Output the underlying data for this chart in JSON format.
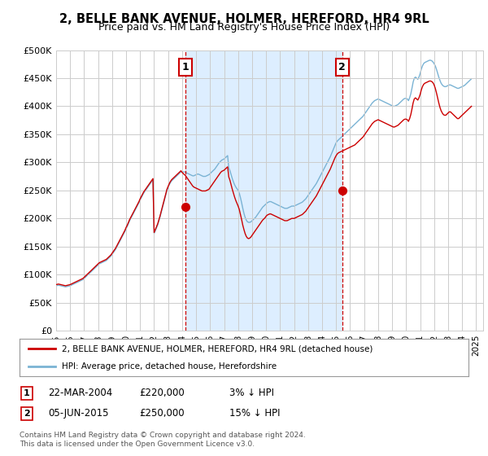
{
  "title": "2, BELLE BANK AVENUE, HOLMER, HEREFORD, HR4 9RL",
  "subtitle": "Price paid vs. HM Land Registry's House Price Index (HPI)",
  "ytick_values": [
    0,
    50000,
    100000,
    150000,
    200000,
    250000,
    300000,
    350000,
    400000,
    450000,
    500000
  ],
  "ylim": [
    0,
    500000
  ],
  "xlim_start": 1995.0,
  "xlim_end": 2025.5,
  "sale1_date": 2004.23,
  "sale1_price": 220000,
  "sale1_label": "22-MAR-2004",
  "sale2_date": 2015.44,
  "sale2_price": 250000,
  "sale2_label": "05-JUN-2015",
  "legend_line1": "2, BELLE BANK AVENUE, HOLMER, HEREFORD, HR4 9RL (detached house)",
  "legend_line2": "HPI: Average price, detached house, Herefordshire",
  "footer1": "Contains HM Land Registry data © Crown copyright and database right 2024.",
  "footer2": "This data is licensed under the Open Government Licence v3.0.",
  "bg_color": "#ffffff",
  "plot_bg": "#ffffff",
  "shade_color": "#ddeeff",
  "grid_color": "#cccccc",
  "red_color": "#cc0000",
  "blue_color": "#7ab3d4",
  "hpi_data_x": [
    1995.0,
    1995.083,
    1995.167,
    1995.25,
    1995.333,
    1995.417,
    1995.5,
    1995.583,
    1995.667,
    1995.75,
    1995.833,
    1995.917,
    1996.0,
    1996.083,
    1996.167,
    1996.25,
    1996.333,
    1996.417,
    1996.5,
    1996.583,
    1996.667,
    1996.75,
    1996.833,
    1996.917,
    1997.0,
    1997.083,
    1997.167,
    1997.25,
    1997.333,
    1997.417,
    1997.5,
    1997.583,
    1997.667,
    1997.75,
    1997.833,
    1997.917,
    1998.0,
    1998.083,
    1998.167,
    1998.25,
    1998.333,
    1998.417,
    1998.5,
    1998.583,
    1998.667,
    1998.75,
    1998.833,
    1998.917,
    1999.0,
    1999.083,
    1999.167,
    1999.25,
    1999.333,
    1999.417,
    1999.5,
    1999.583,
    1999.667,
    1999.75,
    1999.833,
    1999.917,
    2000.0,
    2000.083,
    2000.167,
    2000.25,
    2000.333,
    2000.417,
    2000.5,
    2000.583,
    2000.667,
    2000.75,
    2000.833,
    2000.917,
    2001.0,
    2001.083,
    2001.167,
    2001.25,
    2001.333,
    2001.417,
    2001.5,
    2001.583,
    2001.667,
    2001.75,
    2001.833,
    2001.917,
    2002.0,
    2002.083,
    2002.167,
    2002.25,
    2002.333,
    2002.417,
    2002.5,
    2002.583,
    2002.667,
    2002.75,
    2002.833,
    2002.917,
    2003.0,
    2003.083,
    2003.167,
    2003.25,
    2003.333,
    2003.417,
    2003.5,
    2003.583,
    2003.667,
    2003.75,
    2003.833,
    2003.917,
    2004.0,
    2004.083,
    2004.167,
    2004.25,
    2004.333,
    2004.417,
    2004.5,
    2004.583,
    2004.667,
    2004.75,
    2004.833,
    2004.917,
    2005.0,
    2005.083,
    2005.167,
    2005.25,
    2005.333,
    2005.417,
    2005.5,
    2005.583,
    2005.667,
    2005.75,
    2005.833,
    2005.917,
    2006.0,
    2006.083,
    2006.167,
    2006.25,
    2006.333,
    2006.417,
    2006.5,
    2006.583,
    2006.667,
    2006.75,
    2006.833,
    2006.917,
    2007.0,
    2007.083,
    2007.167,
    2007.25,
    2007.333,
    2007.417,
    2007.5,
    2007.583,
    2007.667,
    2007.75,
    2007.833,
    2007.917,
    2008.0,
    2008.083,
    2008.167,
    2008.25,
    2008.333,
    2008.417,
    2008.5,
    2008.583,
    2008.667,
    2008.75,
    2008.833,
    2008.917,
    2009.0,
    2009.083,
    2009.167,
    2009.25,
    2009.333,
    2009.417,
    2009.5,
    2009.583,
    2009.667,
    2009.75,
    2009.833,
    2009.917,
    2010.0,
    2010.083,
    2010.167,
    2010.25,
    2010.333,
    2010.417,
    2010.5,
    2010.583,
    2010.667,
    2010.75,
    2010.833,
    2010.917,
    2011.0,
    2011.083,
    2011.167,
    2011.25,
    2011.333,
    2011.417,
    2011.5,
    2011.583,
    2011.667,
    2011.75,
    2011.833,
    2011.917,
    2012.0,
    2012.083,
    2012.167,
    2012.25,
    2012.333,
    2012.417,
    2012.5,
    2012.583,
    2012.667,
    2012.75,
    2012.833,
    2012.917,
    2013.0,
    2013.083,
    2013.167,
    2013.25,
    2013.333,
    2013.417,
    2013.5,
    2013.583,
    2013.667,
    2013.75,
    2013.833,
    2013.917,
    2014.0,
    2014.083,
    2014.167,
    2014.25,
    2014.333,
    2014.417,
    2014.5,
    2014.583,
    2014.667,
    2014.75,
    2014.833,
    2014.917,
    2015.0,
    2015.083,
    2015.167,
    2015.25,
    2015.333,
    2015.417,
    2015.5,
    2015.583,
    2015.667,
    2015.75,
    2015.833,
    2015.917,
    2016.0,
    2016.083,
    2016.167,
    2016.25,
    2016.333,
    2016.417,
    2016.5,
    2016.583,
    2016.667,
    2016.75,
    2016.833,
    2016.917,
    2017.0,
    2017.083,
    2017.167,
    2017.25,
    2017.333,
    2017.417,
    2017.5,
    2017.583,
    2017.667,
    2017.75,
    2017.833,
    2017.917,
    2018.0,
    2018.083,
    2018.167,
    2018.25,
    2018.333,
    2018.417,
    2018.5,
    2018.583,
    2018.667,
    2018.75,
    2018.833,
    2018.917,
    2019.0,
    2019.083,
    2019.167,
    2019.25,
    2019.333,
    2019.417,
    2019.5,
    2019.583,
    2019.667,
    2019.75,
    2019.833,
    2019.917,
    2020.0,
    2020.083,
    2020.167,
    2020.25,
    2020.333,
    2020.417,
    2020.5,
    2020.583,
    2020.667,
    2020.75,
    2020.833,
    2020.917,
    2021.0,
    2021.083,
    2021.167,
    2021.25,
    2021.333,
    2021.417,
    2021.5,
    2021.583,
    2021.667,
    2021.75,
    2021.833,
    2021.917,
    2022.0,
    2022.083,
    2022.167,
    2022.25,
    2022.333,
    2022.417,
    2022.5,
    2022.583,
    2022.667,
    2022.75,
    2022.833,
    2022.917,
    2023.0,
    2023.083,
    2023.167,
    2023.25,
    2023.333,
    2023.417,
    2023.5,
    2023.583,
    2023.667,
    2023.75,
    2023.833,
    2023.917,
    2024.0,
    2024.083,
    2024.167,
    2024.25,
    2024.333,
    2024.417,
    2024.5,
    2024.583,
    2024.667
  ],
  "hpi_data_y": [
    80000,
    80500,
    81000,
    80500,
    80000,
    79500,
    79000,
    78500,
    78000,
    78500,
    79000,
    79500,
    80000,
    81000,
    82000,
    83000,
    84000,
    85000,
    86000,
    87000,
    88000,
    89000,
    90000,
    91000,
    93000,
    95000,
    97000,
    99000,
    101000,
    103000,
    105000,
    107000,
    109000,
    111000,
    113000,
    115000,
    117000,
    119000,
    120000,
    121000,
    122000,
    123000,
    124000,
    125000,
    127000,
    129000,
    131000,
    133000,
    136000,
    139000,
    142000,
    145000,
    149000,
    153000,
    157000,
    161000,
    165000,
    169000,
    173000,
    177000,
    182000,
    186000,
    191000,
    196000,
    200000,
    204000,
    208000,
    212000,
    216000,
    220000,
    224000,
    228000,
    233000,
    237000,
    241000,
    245000,
    248000,
    251000,
    254000,
    257000,
    260000,
    263000,
    266000,
    269000,
    173000,
    178000,
    183000,
    188000,
    195000,
    202000,
    210000,
    218000,
    226000,
    234000,
    242000,
    250000,
    255000,
    260000,
    264000,
    267000,
    269000,
    271000,
    273000,
    275000,
    277000,
    279000,
    281000,
    283000,
    283000,
    283000,
    283000,
    282000,
    281000,
    280000,
    279000,
    278000,
    277000,
    276000,
    276000,
    277000,
    278000,
    279000,
    279000,
    278000,
    277000,
    276000,
    275000,
    275000,
    275000,
    276000,
    277000,
    278000,
    280000,
    282000,
    284000,
    286000,
    288000,
    291000,
    294000,
    297000,
    300000,
    302000,
    304000,
    305000,
    306000,
    308000,
    310000,
    312000,
    290000,
    285000,
    278000,
    271000,
    265000,
    260000,
    256000,
    253000,
    250000,
    245000,
    237000,
    228000,
    218000,
    209000,
    202000,
    197000,
    194000,
    193000,
    193000,
    194000,
    196000,
    198000,
    200000,
    202000,
    205000,
    208000,
    211000,
    214000,
    217000,
    220000,
    222000,
    224000,
    226000,
    228000,
    229000,
    230000,
    230000,
    229000,
    228000,
    227000,
    226000,
    225000,
    224000,
    223000,
    222000,
    221000,
    220000,
    219000,
    218000,
    218000,
    218000,
    219000,
    220000,
    221000,
    222000,
    222000,
    222000,
    223000,
    224000,
    225000,
    226000,
    227000,
    228000,
    229000,
    231000,
    233000,
    235000,
    238000,
    241000,
    244000,
    247000,
    250000,
    253000,
    256000,
    259000,
    262000,
    266000,
    270000,
    274000,
    278000,
    282000,
    286000,
    290000,
    294000,
    298000,
    302000,
    306000,
    310000,
    315000,
    320000,
    325000,
    330000,
    335000,
    338000,
    340000,
    342000,
    344000,
    346000,
    348000,
    350000,
    352000,
    354000,
    356000,
    358000,
    360000,
    362000,
    364000,
    366000,
    368000,
    370000,
    372000,
    374000,
    376000,
    378000,
    380000,
    382000,
    385000,
    388000,
    391000,
    394000,
    397000,
    400000,
    403000,
    406000,
    408000,
    410000,
    411000,
    412000,
    413000,
    412000,
    411000,
    410000,
    409000,
    408000,
    407000,
    406000,
    405000,
    404000,
    403000,
    402000,
    401000,
    400000,
    400000,
    401000,
    402000,
    403000,
    405000,
    407000,
    409000,
    411000,
    413000,
    414000,
    414000,
    413000,
    410000,
    415000,
    422000,
    432000,
    443000,
    450000,
    452000,
    450000,
    448000,
    452000,
    458000,
    466000,
    472000,
    476000,
    478000,
    479000,
    480000,
    481000,
    482000,
    482000,
    481000,
    479000,
    476000,
    472000,
    466000,
    459000,
    452000,
    446000,
    441000,
    438000,
    436000,
    435000,
    435000,
    436000,
    437000,
    438000,
    438000,
    437000,
    436000,
    435000,
    434000,
    433000,
    432000,
    432000,
    433000,
    434000,
    435000,
    436000,
    437000,
    439000,
    441000,
    443000,
    445000,
    447000,
    449000
  ],
  "price_data_x": [
    1995.0,
    1995.083,
    1995.167,
    1995.25,
    1995.333,
    1995.417,
    1995.5,
    1995.583,
    1995.667,
    1995.75,
    1995.833,
    1995.917,
    1996.0,
    1996.083,
    1996.167,
    1996.25,
    1996.333,
    1996.417,
    1996.5,
    1996.583,
    1996.667,
    1996.75,
    1996.833,
    1996.917,
    1997.0,
    1997.083,
    1997.167,
    1997.25,
    1997.333,
    1997.417,
    1997.5,
    1997.583,
    1997.667,
    1997.75,
    1997.833,
    1997.917,
    1998.0,
    1998.083,
    1998.167,
    1998.25,
    1998.333,
    1998.417,
    1998.5,
    1998.583,
    1998.667,
    1998.75,
    1998.833,
    1998.917,
    1999.0,
    1999.083,
    1999.167,
    1999.25,
    1999.333,
    1999.417,
    1999.5,
    1999.583,
    1999.667,
    1999.75,
    1999.833,
    1999.917,
    2000.0,
    2000.083,
    2000.167,
    2000.25,
    2000.333,
    2000.417,
    2000.5,
    2000.583,
    2000.667,
    2000.75,
    2000.833,
    2000.917,
    2001.0,
    2001.083,
    2001.167,
    2001.25,
    2001.333,
    2001.417,
    2001.5,
    2001.583,
    2001.667,
    2001.75,
    2001.833,
    2001.917,
    2002.0,
    2002.083,
    2002.167,
    2002.25,
    2002.333,
    2002.417,
    2002.5,
    2002.583,
    2002.667,
    2002.75,
    2002.833,
    2002.917,
    2003.0,
    2003.083,
    2003.167,
    2003.25,
    2003.333,
    2003.417,
    2003.5,
    2003.583,
    2003.667,
    2003.75,
    2003.833,
    2003.917,
    2004.0,
    2004.083,
    2004.167,
    2004.25,
    2004.333,
    2004.417,
    2004.5,
    2004.583,
    2004.667,
    2004.75,
    2004.833,
    2004.917,
    2005.0,
    2005.083,
    2005.167,
    2005.25,
    2005.333,
    2005.417,
    2005.5,
    2005.583,
    2005.667,
    2005.75,
    2005.833,
    2005.917,
    2006.0,
    2006.083,
    2006.167,
    2006.25,
    2006.333,
    2006.417,
    2006.5,
    2006.583,
    2006.667,
    2006.75,
    2006.833,
    2006.917,
    2007.0,
    2007.083,
    2007.167,
    2007.25,
    2007.333,
    2007.417,
    2007.5,
    2007.583,
    2007.667,
    2007.75,
    2007.833,
    2007.917,
    2008.0,
    2008.083,
    2008.167,
    2008.25,
    2008.333,
    2008.417,
    2008.5,
    2008.583,
    2008.667,
    2008.75,
    2008.833,
    2008.917,
    2009.0,
    2009.083,
    2009.167,
    2009.25,
    2009.333,
    2009.417,
    2009.5,
    2009.583,
    2009.667,
    2009.75,
    2009.833,
    2009.917,
    2010.0,
    2010.083,
    2010.167,
    2010.25,
    2010.333,
    2010.417,
    2010.5,
    2010.583,
    2010.667,
    2010.75,
    2010.833,
    2010.917,
    2011.0,
    2011.083,
    2011.167,
    2011.25,
    2011.333,
    2011.417,
    2011.5,
    2011.583,
    2011.667,
    2011.75,
    2011.833,
    2011.917,
    2012.0,
    2012.083,
    2012.167,
    2012.25,
    2012.333,
    2012.417,
    2012.5,
    2012.583,
    2012.667,
    2012.75,
    2012.833,
    2012.917,
    2013.0,
    2013.083,
    2013.167,
    2013.25,
    2013.333,
    2013.417,
    2013.5,
    2013.583,
    2013.667,
    2013.75,
    2013.833,
    2013.917,
    2014.0,
    2014.083,
    2014.167,
    2014.25,
    2014.333,
    2014.417,
    2014.5,
    2014.583,
    2014.667,
    2014.75,
    2014.833,
    2014.917,
    2015.0,
    2015.083,
    2015.167,
    2015.25,
    2015.333,
    2015.417,
    2015.5,
    2015.583,
    2015.667,
    2015.75,
    2015.833,
    2015.917,
    2016.0,
    2016.083,
    2016.167,
    2016.25,
    2016.333,
    2016.417,
    2016.5,
    2016.583,
    2016.667,
    2016.75,
    2016.833,
    2016.917,
    2017.0,
    2017.083,
    2017.167,
    2017.25,
    2017.333,
    2017.417,
    2017.5,
    2017.583,
    2017.667,
    2017.75,
    2017.833,
    2017.917,
    2018.0,
    2018.083,
    2018.167,
    2018.25,
    2018.333,
    2018.417,
    2018.5,
    2018.583,
    2018.667,
    2018.75,
    2018.833,
    2018.917,
    2019.0,
    2019.083,
    2019.167,
    2019.25,
    2019.333,
    2019.417,
    2019.5,
    2019.583,
    2019.667,
    2019.75,
    2019.833,
    2019.917,
    2020.0,
    2020.083,
    2020.167,
    2020.25,
    2020.333,
    2020.417,
    2020.5,
    2020.583,
    2020.667,
    2020.75,
    2020.833,
    2020.917,
    2021.0,
    2021.083,
    2021.167,
    2021.25,
    2021.333,
    2021.417,
    2021.5,
    2021.583,
    2021.667,
    2021.75,
    2021.833,
    2021.917,
    2022.0,
    2022.083,
    2022.167,
    2022.25,
    2022.333,
    2022.417,
    2022.5,
    2022.583,
    2022.667,
    2022.75,
    2022.833,
    2022.917,
    2023.0,
    2023.083,
    2023.167,
    2023.25,
    2023.333,
    2023.417,
    2023.5,
    2023.583,
    2023.667,
    2023.75,
    2023.833,
    2023.917,
    2024.0,
    2024.083,
    2024.167,
    2024.25,
    2024.333,
    2024.417,
    2024.5,
    2024.583,
    2024.667
  ],
  "price_data_y": [
    82000,
    82500,
    83000,
    82500,
    82000,
    81500,
    81000,
    80500,
    80000,
    80500,
    81000,
    81500,
    82000,
    83000,
    84000,
    85000,
    86000,
    87000,
    88000,
    89000,
    90000,
    91000,
    92000,
    93000,
    95000,
    97000,
    99000,
    101000,
    103000,
    105000,
    107000,
    109000,
    111000,
    113000,
    115000,
    117000,
    119000,
    121000,
    122000,
    123000,
    124000,
    125000,
    126000,
    127000,
    129000,
    131000,
    133000,
    135000,
    138000,
    141000,
    144000,
    147000,
    151000,
    155000,
    159000,
    163000,
    167000,
    171000,
    175000,
    179000,
    184000,
    188000,
    193000,
    198000,
    202000,
    206000,
    210000,
    214000,
    218000,
    222000,
    226000,
    230000,
    235000,
    239000,
    243000,
    247000,
    250000,
    253000,
    256000,
    259000,
    262000,
    265000,
    268000,
    271000,
    175000,
    180000,
    185000,
    190000,
    197000,
    204000,
    212000,
    220000,
    228000,
    236000,
    244000,
    252000,
    257000,
    262000,
    266000,
    269000,
    271000,
    273000,
    275000,
    277000,
    279000,
    281000,
    283000,
    285000,
    282000,
    280000,
    278000,
    276000,
    273000,
    270000,
    267000,
    264000,
    261000,
    258000,
    256000,
    255000,
    254000,
    253000,
    252000,
    251000,
    250000,
    249000,
    249000,
    249000,
    249000,
    250000,
    251000,
    252000,
    255000,
    258000,
    261000,
    264000,
    267000,
    270000,
    273000,
    276000,
    279000,
    282000,
    284000,
    285000,
    286000,
    288000,
    290000,
    292000,
    274000,
    268000,
    260000,
    252000,
    245000,
    238000,
    232000,
    227000,
    222000,
    216000,
    207000,
    198000,
    188000,
    180000,
    173000,
    168000,
    165000,
    164000,
    165000,
    167000,
    170000,
    173000,
    176000,
    179000,
    182000,
    185000,
    188000,
    191000,
    194000,
    197000,
    199000,
    201000,
    204000,
    206000,
    207000,
    208000,
    208000,
    207000,
    206000,
    205000,
    204000,
    203000,
    202000,
    201000,
    200000,
    199000,
    198000,
    197000,
    196000,
    196000,
    196000,
    197000,
    198000,
    199000,
    200000,
    200000,
    200000,
    201000,
    202000,
    203000,
    204000,
    205000,
    206000,
    207000,
    209000,
    211000,
    213000,
    216000,
    219000,
    222000,
    225000,
    228000,
    231000,
    234000,
    237000,
    240000,
    244000,
    248000,
    252000,
    256000,
    260000,
    264000,
    268000,
    272000,
    276000,
    280000,
    284000,
    288000,
    293000,
    298000,
    303000,
    308000,
    312000,
    315000,
    317000,
    318000,
    319000,
    320000,
    321000,
    322000,
    323000,
    324000,
    325000,
    326000,
    327000,
    328000,
    329000,
    330000,
    331000,
    333000,
    335000,
    337000,
    339000,
    341000,
    343000,
    345000,
    348000,
    351000,
    354000,
    357000,
    360000,
    363000,
    366000,
    369000,
    371000,
    373000,
    374000,
    375000,
    376000,
    375000,
    374000,
    373000,
    372000,
    371000,
    370000,
    369000,
    368000,
    367000,
    366000,
    365000,
    364000,
    363000,
    363000,
    364000,
    365000,
    366000,
    368000,
    370000,
    372000,
    374000,
    376000,
    377000,
    377000,
    376000,
    373000,
    378000,
    385000,
    395000,
    406000,
    413000,
    415000,
    413000,
    411000,
    415000,
    421000,
    429000,
    435000,
    439000,
    441000,
    442000,
    443000,
    444000,
    445000,
    445000,
    444000,
    442000,
    438000,
    432000,
    424000,
    415000,
    406000,
    398000,
    392000,
    388000,
    385000,
    384000,
    384000,
    386000,
    388000,
    390000,
    390000,
    388000,
    386000,
    384000,
    382000,
    380000,
    378000,
    378000,
    380000,
    382000,
    384000,
    386000,
    388000,
    390000,
    392000,
    394000,
    396000,
    398000,
    400000
  ]
}
